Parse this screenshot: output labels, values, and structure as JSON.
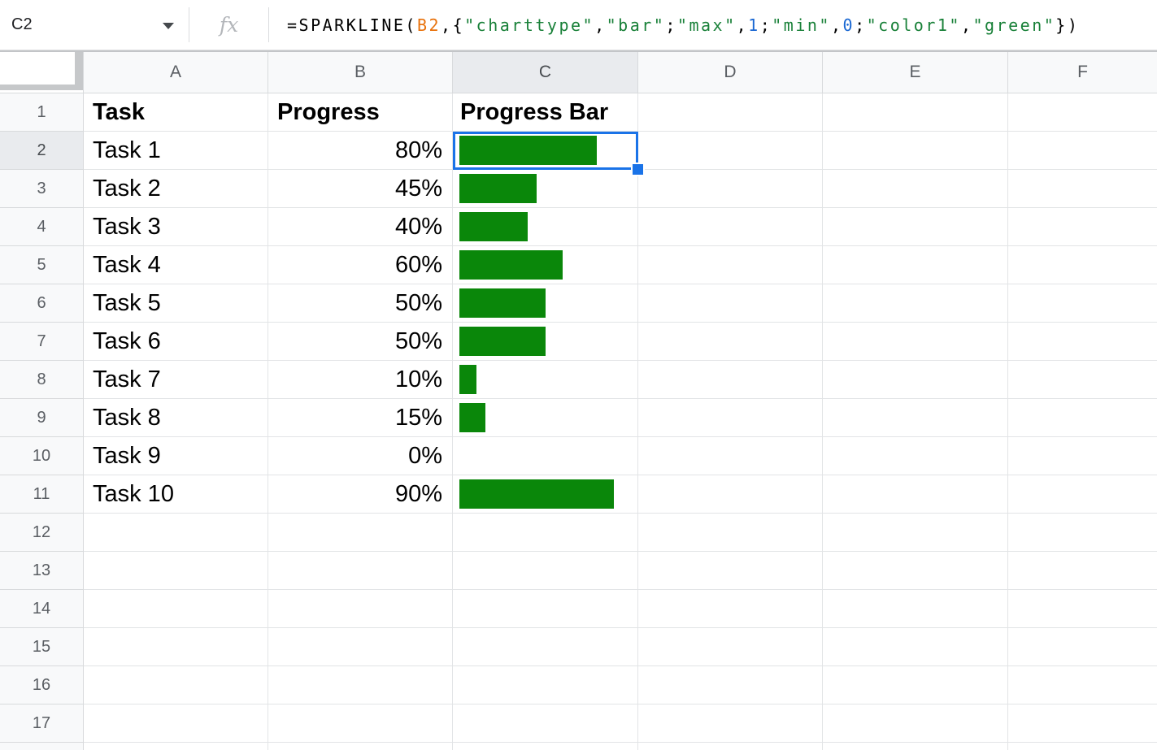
{
  "app": {
    "name": "Google Sheets spreadsheet grid"
  },
  "formula_bar": {
    "cell_reference": "C2",
    "dropdown_icon": "caret-down",
    "fx_label": "fx",
    "formula_full": "=SPARKLINE(B2,{\"charttype\",\"bar\";\"max\",1;\"min\",0;\"color1\",\"green\"})",
    "formula_tokens": [
      {
        "text": "=SPARKLINE(",
        "color": "#000000"
      },
      {
        "text": "B2",
        "color": "#E8710A"
      },
      {
        "text": ",{",
        "color": "#000000"
      },
      {
        "text": "\"charttype\"",
        "color": "#188038"
      },
      {
        "text": ",",
        "color": "#000000"
      },
      {
        "text": "\"bar\"",
        "color": "#188038"
      },
      {
        "text": ";",
        "color": "#000000"
      },
      {
        "text": "\"max\"",
        "color": "#188038"
      },
      {
        "text": ",",
        "color": "#000000"
      },
      {
        "text": "1",
        "color": "#1967D2"
      },
      {
        "text": ";",
        "color": "#000000"
      },
      {
        "text": "\"min\"",
        "color": "#188038"
      },
      {
        "text": ",",
        "color": "#000000"
      },
      {
        "text": "0",
        "color": "#1967D2"
      },
      {
        "text": ";",
        "color": "#000000"
      },
      {
        "text": "\"color1\"",
        "color": "#188038"
      },
      {
        "text": ",",
        "color": "#000000"
      },
      {
        "text": "\"green\"",
        "color": "#188038"
      },
      {
        "text": "})",
        "color": "#000000"
      }
    ]
  },
  "grid": {
    "column_letters": [
      "A",
      "B",
      "C",
      "D",
      "E",
      "F"
    ],
    "row_numbers": [
      1,
      2,
      3,
      4,
      5,
      6,
      7,
      8,
      9,
      10,
      11,
      12,
      13,
      14,
      15,
      16,
      17
    ],
    "selected_cell": "C2",
    "selected_column_index": 2,
    "selected_row": 2,
    "header_row": {
      "A": "Task",
      "B": "Progress",
      "C": "Progress Bar"
    },
    "tasks": [
      {
        "row": 2,
        "task": "Task 1",
        "progress": "80%",
        "pct": 80
      },
      {
        "row": 3,
        "task": "Task 2",
        "progress": "45%",
        "pct": 45
      },
      {
        "row": 4,
        "task": "Task 3",
        "progress": "40%",
        "pct": 40
      },
      {
        "row": 5,
        "task": "Task 4",
        "progress": "60%",
        "pct": 60
      },
      {
        "row": 6,
        "task": "Task 5",
        "progress": "50%",
        "pct": 50
      },
      {
        "row": 7,
        "task": "Task 6",
        "progress": "50%",
        "pct": 50
      },
      {
        "row": 8,
        "task": "Task 7",
        "progress": "10%",
        "pct": 10
      },
      {
        "row": 9,
        "task": "Task 8",
        "progress": "15%",
        "pct": 15
      },
      {
        "row": 10,
        "task": "Task 9",
        "progress": "0%",
        "pct": 0
      },
      {
        "row": 11,
        "task": "Task 10",
        "progress": "90%",
        "pct": 90
      }
    ]
  },
  "chart_data": {
    "type": "bar",
    "title": "Progress Bar sparklines (column C)",
    "categories": [
      "Task 1",
      "Task 2",
      "Task 3",
      "Task 4",
      "Task 5",
      "Task 6",
      "Task 7",
      "Task 8",
      "Task 9",
      "Task 10"
    ],
    "values": [
      0.8,
      0.45,
      0.4,
      0.6,
      0.5,
      0.5,
      0.1,
      0.15,
      0,
      0.9
    ],
    "xlim": [
      0,
      1
    ],
    "bar_color": "green"
  },
  "colors": {
    "bar_green": "#0A870A",
    "selection_blue": "#1A73E8",
    "header_bg": "#F8F9FA",
    "header_highlight_bg": "#E9EBEE",
    "gridline": "#E2E4E6",
    "header_gridline": "#D8DADC",
    "header_text": "#5A5E63",
    "formula_string_green": "#188038",
    "formula_range_orange": "#E8710A",
    "formula_number_blue": "#1967D2"
  }
}
